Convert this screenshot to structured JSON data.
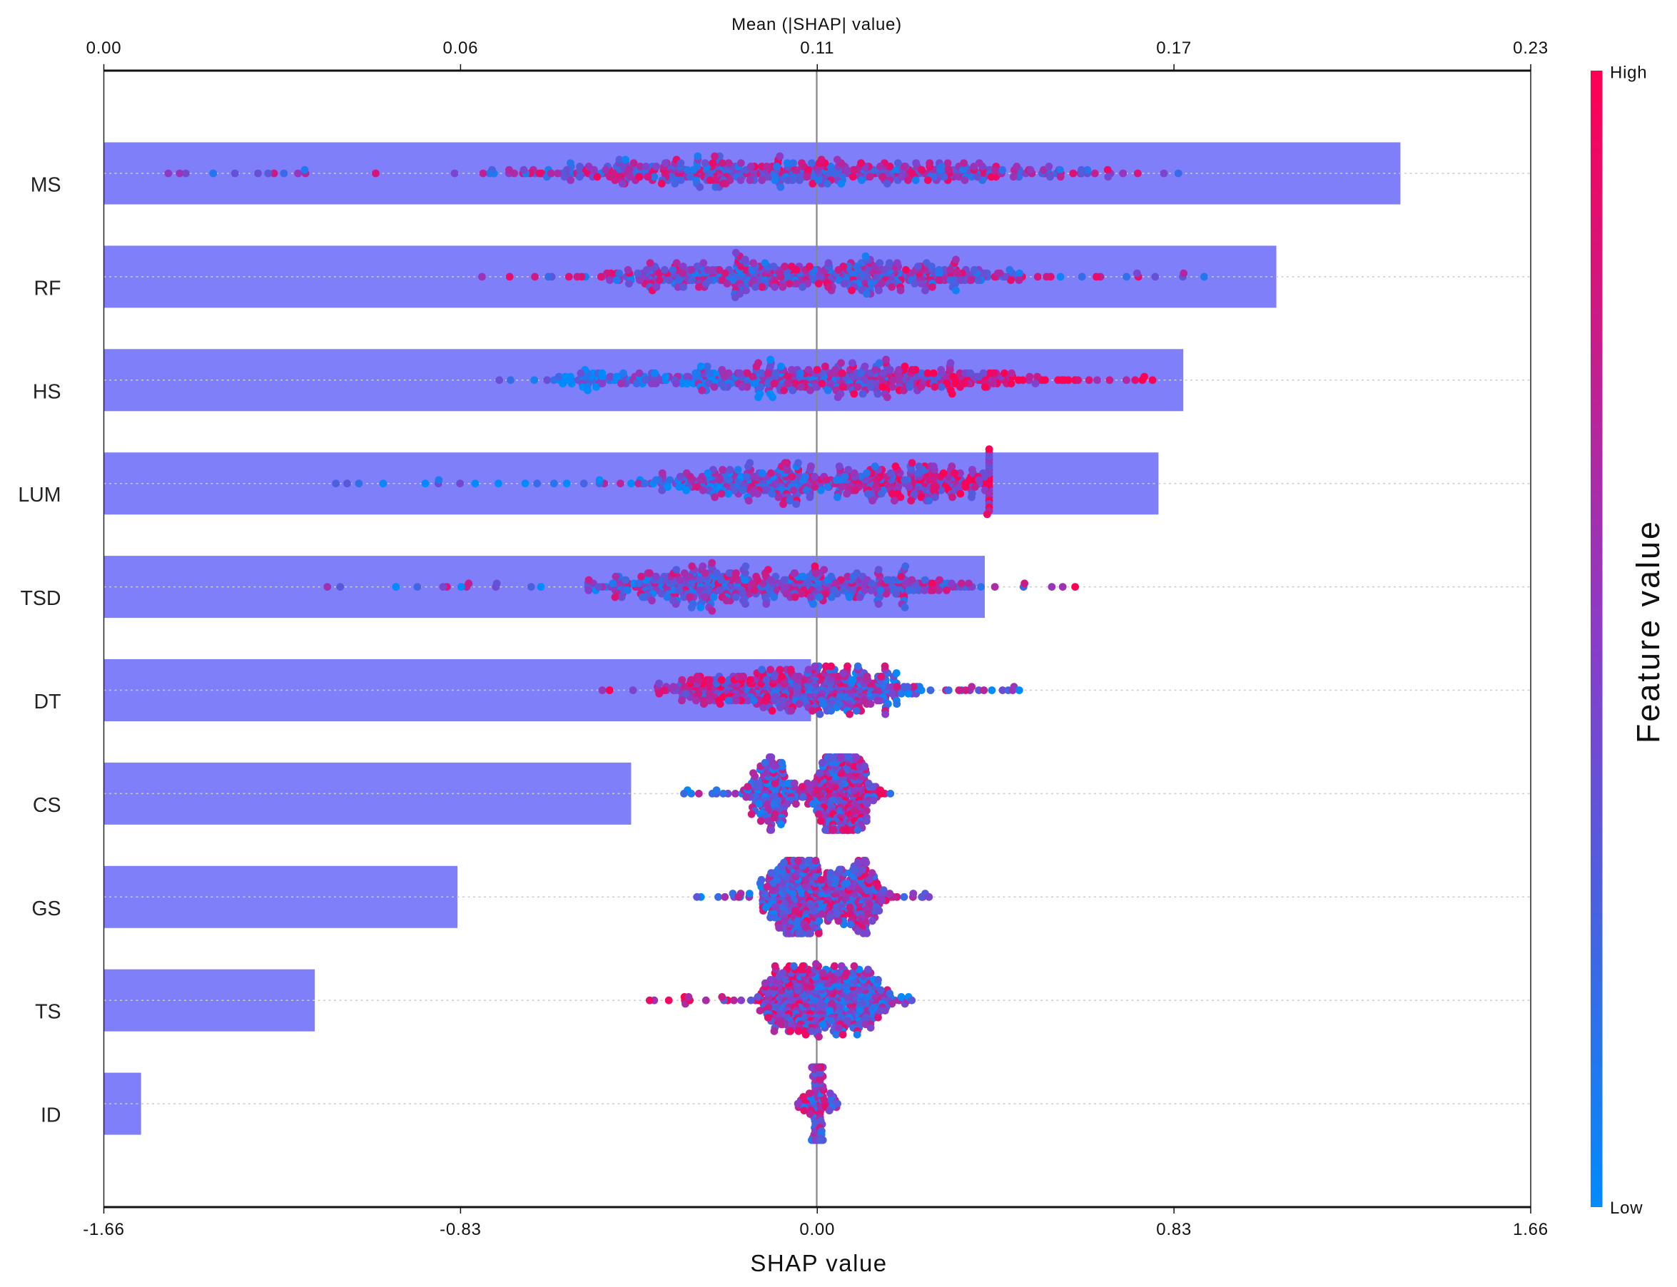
{
  "chart_data": {
    "type": "scatter",
    "subtype": "shap-summary-beeswarm-with-mean-bar",
    "features": [
      "MS",
      "RF",
      "HS",
      "LUM",
      "TSD",
      "DT",
      "CS",
      "GS",
      "TS",
      "ID"
    ],
    "mean_abs_shap": [
      0.209,
      0.189,
      0.174,
      0.17,
      0.142,
      0.114,
      0.085,
      0.057,
      0.034,
      0.006
    ],
    "shap_range": [
      [
        -1.51,
        0.84
      ],
      [
        -0.78,
        0.9
      ],
      [
        -0.74,
        0.78
      ],
      [
        -1.12,
        0.4
      ],
      [
        -1.14,
        0.6
      ],
      [
        -0.5,
        0.47
      ],
      [
        -0.31,
        0.17
      ],
      [
        -0.28,
        0.26
      ],
      [
        -0.39,
        0.22
      ],
      [
        -0.045,
        0.047
      ]
    ],
    "bottom_axis": {
      "label": "SHAP value",
      "ticks": [
        "-1.66",
        "-0.83",
        "0.00",
        "0.83",
        "1.66"
      ],
      "xlim": [
        -1.66,
        1.66
      ]
    },
    "top_axis": {
      "label": "Mean (|SHAP| value)",
      "ticks": [
        "0.00",
        "0.06",
        "0.11",
        "0.17",
        "0.23"
      ],
      "xlim": [
        0,
        0.23
      ]
    },
    "colorbar": {
      "label": "Feature value",
      "high": "High",
      "low": "Low",
      "high_color": "#ff0052",
      "low_color": "#008bfb"
    },
    "bar_color": "#7f7ffa",
    "grid": "dotted horizontal per feature"
  }
}
